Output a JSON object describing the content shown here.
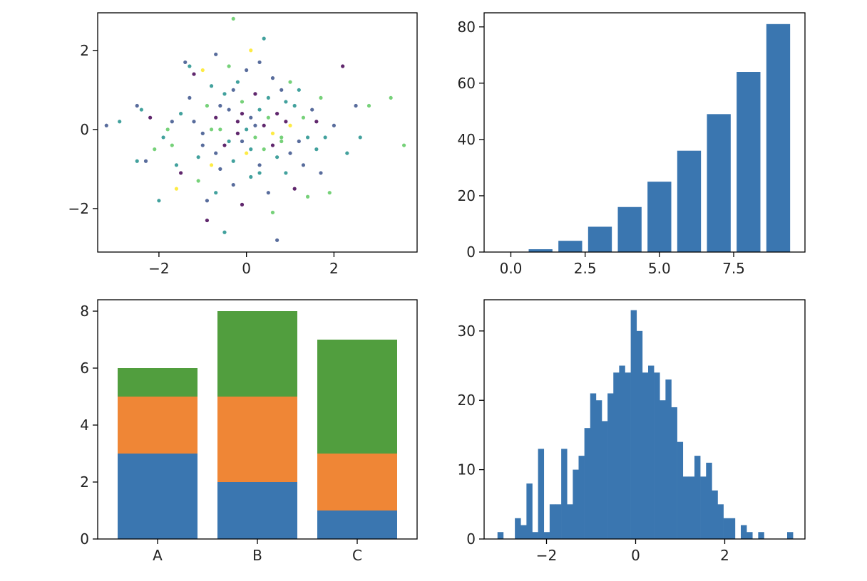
{
  "colors": {
    "blue": "#3a76b0",
    "orange": "#ef8636",
    "green": "#519e3e",
    "viridis": [
      "#440154",
      "#3b528b",
      "#21918c",
      "#5ec962",
      "#fde725"
    ]
  },
  "chart_data": [
    {
      "type": "scatter",
      "title": "",
      "xlabel": "",
      "ylabel": "",
      "xlim": [
        -3.4,
        3.9
      ],
      "ylim": [
        -3.1,
        2.95
      ],
      "xticks": [
        -2,
        0,
        2
      ],
      "yticks": [
        -2,
        0,
        2
      ],
      "xticklabels": [
        "−2",
        "0",
        "2"
      ],
      "yticklabels": [
        "−2",
        "0",
        "2"
      ],
      "colormap": "viridis",
      "points": [
        [
          -3.2,
          0.1,
          1
        ],
        [
          -2.9,
          0.2,
          2
        ],
        [
          -2.5,
          0.6,
          1
        ],
        [
          -2.4,
          0.5,
          2
        ],
        [
          -2.2,
          0.3,
          0
        ],
        [
          -2.3,
          -0.8,
          1
        ],
        [
          -2.5,
          -0.8,
          2
        ],
        [
          -2.0,
          -1.8,
          2
        ],
        [
          -2.1,
          -0.5,
          3
        ],
        [
          -1.9,
          -0.2,
          2
        ],
        [
          -1.8,
          0.0,
          3
        ],
        [
          -1.7,
          0.2,
          1
        ],
        [
          -1.7,
          -0.4,
          3
        ],
        [
          -1.6,
          -0.9,
          2
        ],
        [
          -1.6,
          -1.5,
          4
        ],
        [
          -1.5,
          -1.1,
          0
        ],
        [
          -1.5,
          0.4,
          2
        ],
        [
          -1.4,
          1.7,
          1
        ],
        [
          -1.3,
          1.6,
          2
        ],
        [
          -1.3,
          0.8,
          1
        ],
        [
          -1.2,
          1.4,
          0
        ],
        [
          -1.2,
          0.2,
          1
        ],
        [
          -1.1,
          -0.7,
          2
        ],
        [
          -1.1,
          -1.3,
          3
        ],
        [
          -1.0,
          1.5,
          4
        ],
        [
          -1.0,
          -0.1,
          1
        ],
        [
          -0.9,
          0.6,
          3
        ],
        [
          -0.9,
          -2.3,
          0
        ],
        [
          -0.9,
          -1.8,
          1
        ],
        [
          -0.8,
          1.1,
          2
        ],
        [
          -0.8,
          -0.9,
          4
        ],
        [
          -0.7,
          0.3,
          0
        ],
        [
          -0.7,
          1.9,
          1
        ],
        [
          -0.7,
          -1.6,
          2
        ],
        [
          -0.6,
          0.0,
          3
        ],
        [
          -0.6,
          -1.0,
          1
        ],
        [
          -0.5,
          0.9,
          2
        ],
        [
          -0.5,
          -0.4,
          0
        ],
        [
          -0.5,
          -2.6,
          2
        ],
        [
          -0.4,
          1.6,
          3
        ],
        [
          -0.4,
          0.5,
          1
        ],
        [
          -0.3,
          2.8,
          3
        ],
        [
          -0.3,
          -0.8,
          2
        ],
        [
          -0.3,
          -1.4,
          1
        ],
        [
          -0.2,
          0.2,
          0
        ],
        [
          -0.2,
          1.2,
          2
        ],
        [
          -0.1,
          -0.3,
          1
        ],
        [
          -0.1,
          0.7,
          3
        ],
        [
          -0.1,
          -1.9,
          0
        ],
        [
          0.0,
          0.0,
          2
        ],
        [
          0.0,
          1.5,
          1
        ],
        [
          0.0,
          -0.6,
          4
        ],
        [
          0.1,
          0.3,
          1
        ],
        [
          0.1,
          -1.2,
          2
        ],
        [
          0.1,
          2.0,
          4
        ],
        [
          0.2,
          0.9,
          0
        ],
        [
          0.2,
          -0.2,
          3
        ],
        [
          0.3,
          -0.9,
          1
        ],
        [
          0.3,
          0.5,
          2
        ],
        [
          0.3,
          1.7,
          1
        ],
        [
          0.4,
          -0.5,
          3
        ],
        [
          0.4,
          0.1,
          0
        ],
        [
          0.4,
          2.3,
          2
        ],
        [
          0.5,
          -1.6,
          1
        ],
        [
          0.5,
          0.8,
          2
        ],
        [
          0.6,
          -0.1,
          4
        ],
        [
          0.6,
          1.3,
          1
        ],
        [
          0.6,
          -2.1,
          3
        ],
        [
          0.7,
          0.4,
          0
        ],
        [
          0.7,
          -0.7,
          2
        ],
        [
          0.7,
          -2.8,
          1
        ],
        [
          0.8,
          -0.2,
          3
        ],
        [
          0.8,
          1.0,
          1
        ],
        [
          0.9,
          -1.1,
          2
        ],
        [
          0.9,
          0.2,
          0
        ],
        [
          1.0,
          -0.6,
          1
        ],
        [
          1.0,
          1.2,
          3
        ],
        [
          1.1,
          0.6,
          2
        ],
        [
          1.1,
          -1.5,
          0
        ],
        [
          1.2,
          -0.3,
          1
        ],
        [
          1.2,
          1.0,
          2
        ],
        [
          1.3,
          0.3,
          3
        ],
        [
          1.3,
          -0.9,
          1
        ],
        [
          1.4,
          -1.7,
          3
        ],
        [
          1.4,
          -0.2,
          2
        ],
        [
          1.5,
          0.5,
          1
        ],
        [
          1.6,
          -0.5,
          2
        ],
        [
          1.6,
          0.2,
          0
        ],
        [
          1.7,
          -1.1,
          1
        ],
        [
          1.7,
          0.8,
          3
        ],
        [
          1.8,
          -0.2,
          2
        ],
        [
          1.9,
          -1.6,
          3
        ],
        [
          2.0,
          0.1,
          1
        ],
        [
          2.2,
          1.6,
          0
        ],
        [
          2.3,
          -0.6,
          2
        ],
        [
          2.5,
          0.6,
          1
        ],
        [
          2.6,
          -0.2,
          2
        ],
        [
          2.8,
          0.6,
          3
        ],
        [
          3.3,
          0.8,
          3
        ],
        [
          3.6,
          -0.4,
          3
        ],
        [
          -0.2,
          -0.1,
          0
        ],
        [
          0.2,
          0.1,
          1
        ],
        [
          -0.4,
          -0.3,
          2
        ],
        [
          0.5,
          0.3,
          3
        ],
        [
          -0.6,
          0.6,
          1
        ],
        [
          0.6,
          -0.4,
          0
        ],
        [
          -0.8,
          0.0,
          3
        ],
        [
          0.9,
          0.7,
          2
        ],
        [
          -1.0,
          -0.4,
          1
        ],
        [
          1.0,
          0.1,
          4
        ],
        [
          -0.3,
          1.0,
          1
        ],
        [
          0.3,
          -1.1,
          2
        ],
        [
          -0.1,
          0.4,
          0
        ],
        [
          0.1,
          -0.5,
          2
        ],
        [
          -0.7,
          -0.6,
          1
        ],
        [
          0.8,
          -0.3,
          3
        ]
      ]
    },
    {
      "type": "bar",
      "title": "",
      "xlabel": "",
      "ylabel": "",
      "x": [
        0,
        1,
        2,
        3,
        4,
        5,
        6,
        7,
        8,
        9
      ],
      "values": [
        0,
        1,
        4,
        9,
        16,
        25,
        36,
        49,
        64,
        81
      ],
      "xlim": [
        -0.9,
        9.9
      ],
      "ylim": [
        0,
        85
      ],
      "xticks": [
        0,
        2.5,
        5,
        7.5
      ],
      "yticks": [
        0,
        20,
        40,
        60,
        80
      ],
      "xticklabels": [
        "0.0",
        "2.5",
        "5.0",
        "7.5"
      ],
      "yticklabels": [
        "0",
        "20",
        "40",
        "60",
        "80"
      ]
    },
    {
      "type": "bar",
      "stacked": true,
      "title": "",
      "xlabel": "",
      "ylabel": "",
      "categories": [
        "A",
        "B",
        "C"
      ],
      "series": [
        {
          "values": [
            3,
            2,
            1
          ]
        },
        {
          "values": [
            2,
            3,
            2
          ]
        },
        {
          "values": [
            1,
            3,
            4
          ]
        }
      ],
      "xlim": [
        -0.6,
        2.6
      ],
      "ylim": [
        0,
        8.4
      ],
      "yticks": [
        0,
        2,
        4,
        6,
        8
      ],
      "yticklabels": [
        "0",
        "2",
        "4",
        "6",
        "8"
      ]
    },
    {
      "type": "bar",
      "histogram": true,
      "title": "",
      "xlabel": "",
      "ylabel": "",
      "bin_start": -3.1,
      "bin_width": 0.13,
      "counts": [
        1,
        0,
        0,
        3,
        2,
        8,
        1,
        13,
        1,
        5,
        5,
        13,
        5,
        10,
        12,
        16,
        21,
        20,
        17,
        21,
        24,
        25,
        24,
        33,
        30,
        24,
        25,
        24,
        20,
        23,
        19,
        14,
        9,
        9,
        12,
        9,
        11,
        7,
        5,
        3,
        3,
        0,
        2,
        1,
        0,
        1,
        0,
        0,
        0,
        0,
        1
      ],
      "xlim": [
        -3.4,
        3.8
      ],
      "ylim": [
        0,
        34.5
      ],
      "xticks": [
        -2,
        0,
        2
      ],
      "yticks": [
        0,
        10,
        20,
        30
      ],
      "xticklabels": [
        "−2",
        "0",
        "2"
      ],
      "yticklabels": [
        "0",
        "10",
        "20",
        "30"
      ]
    }
  ]
}
